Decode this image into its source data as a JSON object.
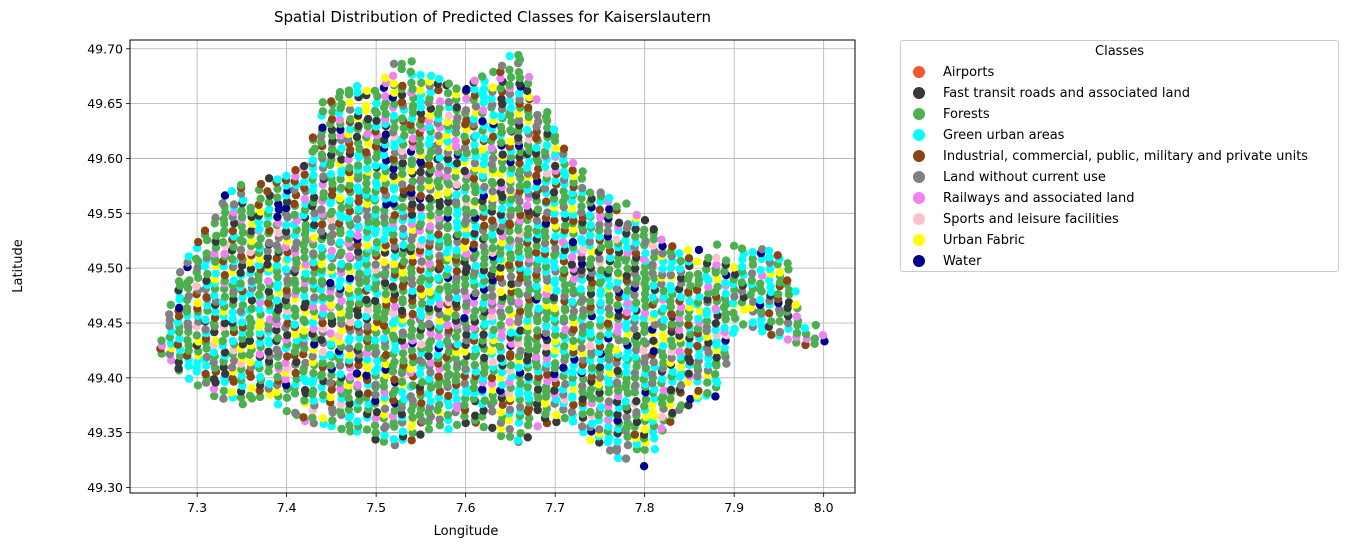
{
  "chart_data": {
    "type": "scatter",
    "title": "Spatial Distribution of Predicted Classes for Kaiserslautern",
    "xlabel": "Longitude",
    "ylabel": "Latitude",
    "xlim": [
      7.225,
      8.035
    ],
    "ylim": [
      49.295,
      49.708
    ],
    "xticks": [
      "7.3",
      "7.4",
      "7.5",
      "7.6",
      "7.7",
      "7.8",
      "7.9",
      "8.0"
    ],
    "yticks": [
      "49.30",
      "49.35",
      "49.40",
      "49.45",
      "49.50",
      "49.55",
      "49.60",
      "49.65",
      "49.70"
    ],
    "grid": true,
    "legend": {
      "title": "Classes",
      "placement": "outside-right",
      "entries": [
        {
          "label": "Airports",
          "color": "#f15a30"
        },
        {
          "label": "Fast transit roads and associated land",
          "color": "#34393a"
        },
        {
          "label": "Forests",
          "color": "#4caf50"
        },
        {
          "label": "Green urban areas",
          "color": "#00ffff"
        },
        {
          "label": "Industrial, commercial, public, military and private units",
          "color": "#8b4513"
        },
        {
          "label": "Land without current use",
          "color": "#808080"
        },
        {
          "label": "Railways and associated land",
          "color": "#ee82ee"
        },
        {
          "label": "Sports and leisure facilities",
          "color": "#ffc0cb"
        },
        {
          "label": "Urban Fabric",
          "color": "#ffff00"
        },
        {
          "label": "Water",
          "color": "#00008b"
        }
      ]
    },
    "region_profile": [
      [
        7.26,
        49.42,
        49.44
      ],
      [
        7.28,
        49.405,
        49.5
      ],
      [
        7.3,
        49.395,
        49.53
      ],
      [
        7.32,
        49.385,
        49.55
      ],
      [
        7.34,
        49.375,
        49.585
      ],
      [
        7.36,
        49.38,
        49.575
      ],
      [
        7.38,
        49.385,
        49.585
      ],
      [
        7.4,
        49.37,
        49.59
      ],
      [
        7.42,
        49.36,
        49.6
      ],
      [
        7.44,
        49.36,
        49.655
      ],
      [
        7.46,
        49.355,
        49.665
      ],
      [
        7.48,
        49.35,
        49.67
      ],
      [
        7.5,
        49.345,
        49.665
      ],
      [
        7.52,
        49.34,
        49.69
      ],
      [
        7.54,
        49.345,
        49.695
      ],
      [
        7.56,
        49.35,
        49.68
      ],
      [
        7.58,
        49.355,
        49.675
      ],
      [
        7.6,
        49.36,
        49.67
      ],
      [
        7.62,
        49.355,
        49.68
      ],
      [
        7.64,
        49.345,
        49.69
      ],
      [
        7.66,
        49.34,
        49.7
      ],
      [
        7.68,
        49.355,
        49.66
      ],
      [
        7.7,
        49.36,
        49.63
      ],
      [
        7.72,
        49.36,
        49.6
      ],
      [
        7.74,
        49.345,
        49.58
      ],
      [
        7.76,
        49.335,
        49.57
      ],
      [
        7.78,
        49.32,
        49.565
      ],
      [
        7.8,
        49.32,
        49.55
      ],
      [
        7.82,
        49.35,
        49.53
      ],
      [
        7.84,
        49.37,
        49.52
      ],
      [
        7.86,
        49.38,
        49.52
      ],
      [
        7.88,
        49.385,
        49.525
      ],
      [
        7.9,
        49.44,
        49.52
      ],
      [
        7.92,
        49.445,
        49.52
      ],
      [
        7.94,
        49.44,
        49.525
      ],
      [
        7.96,
        49.435,
        49.51
      ],
      [
        7.98,
        49.43,
        49.45
      ],
      [
        8.0,
        49.435,
        49.445
      ]
    ],
    "class_weights": [
      0.0,
      0.09,
      0.33,
      0.19,
      0.09,
      0.12,
      0.06,
      0.02,
      0.07,
      0.03
    ],
    "grid_step": {
      "lon": 0.01,
      "lat": 0.005
    }
  }
}
